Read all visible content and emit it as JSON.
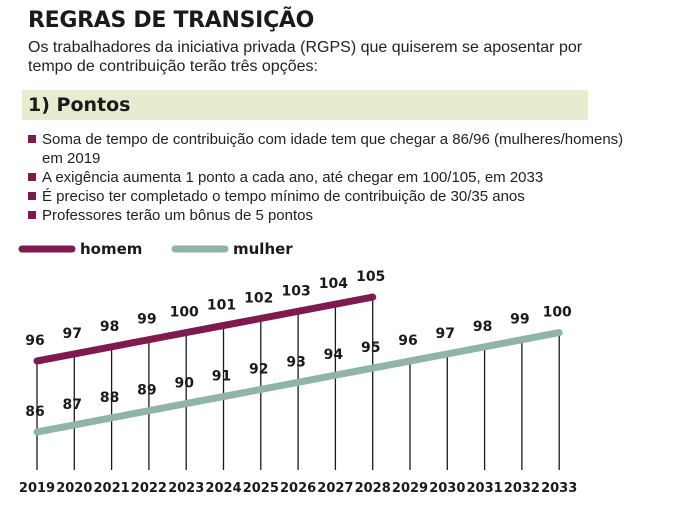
{
  "header": {
    "title": "REGRAS DE TRANSIÇÃO",
    "subtitle": "Os trabalhadores da iniciativa privada (RGPS) que quiserem se aposentar por tempo de contribuição terão três opções:"
  },
  "section": {
    "title": "1) Pontos",
    "bullets": [
      "Soma de tempo de contribuição com idade tem que chegar a 86/96 (mulheres/homens) em 2019",
      "A exigência aumenta 1 ponto a cada ano, até chegar em 100/105, em 2033",
      "É preciso ter completado o tempo mínimo de contribuição de 30/35 anos",
      "Professores terão um bônus de 5 pontos"
    ]
  },
  "colors": {
    "homem": "#7f1a4f",
    "mulher": "#8fb5a6",
    "bullet": "#7f1a4f",
    "band": "#e8ebcf"
  },
  "chart_data": {
    "type": "line",
    "title": "",
    "xlabel": "",
    "ylabel": "",
    "legend": "top-left",
    "grid": false,
    "ylim": [
      84,
      108
    ],
    "x": [
      2019,
      2020,
      2021,
      2022,
      2023,
      2024,
      2025,
      2026,
      2027,
      2028,
      2029,
      2030,
      2031,
      2032,
      2033
    ],
    "series": [
      {
        "name": "homem",
        "x": [
          2019,
          2020,
          2021,
          2022,
          2023,
          2024,
          2025,
          2026,
          2027,
          2028
        ],
        "values": [
          96,
          97,
          98,
          99,
          100,
          101,
          102,
          103,
          104,
          105
        ]
      },
      {
        "name": "mulher",
        "x": [
          2019,
          2020,
          2021,
          2022,
          2023,
          2024,
          2025,
          2026,
          2027,
          2028,
          2029,
          2030,
          2031,
          2032,
          2033
        ],
        "values": [
          86,
          87,
          88,
          89,
          90,
          91,
          92,
          93,
          94,
          95,
          96,
          97,
          98,
          99,
          100
        ]
      }
    ]
  }
}
